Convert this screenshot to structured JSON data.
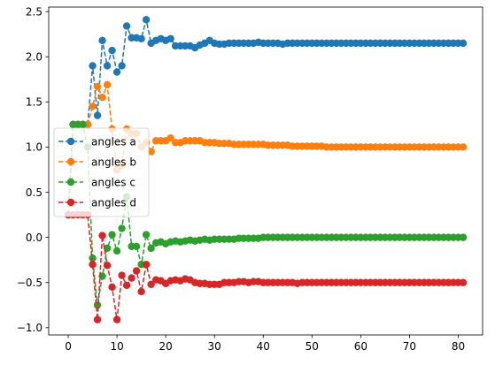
{
  "chart_data": {
    "type": "line",
    "title": "",
    "xlabel": "",
    "ylabel": "",
    "xlim": [
      -4,
      85
    ],
    "ylim": [
      -1.08,
      2.55
    ],
    "xticks": [
      0,
      10,
      20,
      30,
      40,
      50,
      60,
      70,
      80
    ],
    "yticks": [
      -1.0,
      -0.5,
      0.0,
      0.5,
      1.0,
      1.5,
      2.0,
      2.5
    ],
    "xtick_labels": [
      "0",
      "10",
      "20",
      "30",
      "40",
      "50",
      "60",
      "70",
      "80"
    ],
    "ytick_labels": [
      "−1.0",
      "−0.5",
      "0.0",
      "0.5",
      "1.0",
      "1.5",
      "2.0",
      "2.5"
    ],
    "grid": false,
    "legend_position": "center-left",
    "line_style": "dashed",
    "marker": "circle",
    "series": [
      {
        "name": "angles a",
        "color": "#1f77b4",
        "values": [
          0.25,
          1.25,
          1.25,
          1.25,
          1.25,
          1.9,
          1.35,
          2.18,
          1.9,
          2.07,
          1.83,
          1.9,
          2.34,
          2.21,
          2.21,
          2.2,
          2.41,
          2.15,
          2.18,
          2.2,
          2.18,
          2.2,
          2.12,
          2.12,
          2.12,
          2.12,
          2.1,
          2.13,
          2.15,
          2.18,
          2.15,
          2.14,
          2.14,
          2.15,
          2.15,
          2.15,
          2.15,
          2.15,
          2.15,
          2.16,
          2.15,
          2.15,
          2.15,
          2.15,
          2.14,
          2.15,
          2.15,
          2.15,
          2.15,
          2.15,
          2.15,
          2.15,
          2.15,
          2.15,
          2.15,
          2.15,
          2.15,
          2.15,
          2.15,
          2.15,
          2.15,
          2.15,
          2.15,
          2.15,
          2.15,
          2.15,
          2.15,
          2.15,
          2.15,
          2.15,
          2.15,
          2.15,
          2.15,
          2.15,
          2.15,
          2.15,
          2.15,
          2.15,
          2.15,
          2.15,
          2.15,
          2.15
        ]
      },
      {
        "name": "angles b",
        "color": "#ff7f0e",
        "values": [
          0.25,
          1.25,
          1.25,
          1.25,
          1.25,
          1.45,
          1.67,
          1.55,
          1.69,
          1.2,
          0.75,
          0.8,
          1.2,
          1.15,
          1.15,
          1.0,
          1.05,
          0.95,
          1.07,
          1.07,
          1.07,
          1.1,
          1.05,
          1.05,
          1.07,
          1.07,
          1.07,
          1.07,
          1.05,
          1.05,
          1.05,
          1.04,
          1.04,
          1.04,
          1.03,
          1.03,
          1.03,
          1.03,
          1.03,
          1.03,
          1.03,
          1.02,
          1.02,
          1.02,
          1.02,
          1.02,
          1.01,
          1.01,
          1.01,
          1.01,
          1.01,
          1.01,
          1.01,
          1.0,
          1.0,
          1.0,
          1.0,
          1.0,
          1.0,
          1.0,
          1.0,
          1.0,
          1.0,
          1.0,
          1.0,
          1.0,
          1.0,
          1.0,
          1.0,
          1.0,
          1.0,
          1.0,
          1.0,
          1.0,
          1.0,
          1.0,
          1.0,
          1.0,
          1.0,
          1.0,
          1.0,
          1.0
        ]
      },
      {
        "name": "angles c",
        "color": "#2ca02c",
        "values": [
          0.25,
          1.25,
          1.25,
          1.25,
          1.0,
          -0.23,
          -0.75,
          -0.43,
          -0.12,
          0.03,
          -0.15,
          0.1,
          0.45,
          -0.1,
          -0.1,
          -0.3,
          0.03,
          -0.12,
          -0.06,
          -0.05,
          -0.07,
          -0.05,
          -0.04,
          -0.05,
          -0.04,
          -0.03,
          -0.04,
          -0.03,
          -0.02,
          -0.03,
          -0.02,
          -0.02,
          -0.02,
          -0.02,
          -0.02,
          -0.01,
          -0.01,
          -0.01,
          -0.01,
          -0.01,
          0.0,
          0.0,
          0.0,
          0.0,
          0.0,
          0.0,
          0.0,
          0.0,
          0.0,
          0.0,
          0.0,
          0.0,
          0.0,
          0.0,
          0.0,
          0.0,
          0.0,
          0.0,
          0.0,
          0.0,
          0.0,
          0.0,
          0.0,
          0.0,
          0.0,
          0.0,
          0.0,
          0.0,
          0.0,
          0.0,
          0.0,
          0.0,
          0.0,
          0.0,
          0.0,
          0.0,
          0.0,
          0.0,
          0.0,
          0.0,
          0.0,
          0.0
        ]
      },
      {
        "name": "angles d",
        "color": "#d62728",
        "values": [
          0.25,
          0.25,
          0.25,
          0.25,
          0.25,
          -0.3,
          -0.91,
          0.02,
          -0.31,
          -0.55,
          -0.91,
          -0.42,
          -0.53,
          -0.45,
          -0.37,
          -0.6,
          -0.3,
          -0.52,
          -0.47,
          -0.48,
          -0.51,
          -0.48,
          -0.47,
          -0.48,
          -0.46,
          -0.47,
          -0.5,
          -0.51,
          -0.51,
          -0.52,
          -0.52,
          -0.52,
          -0.5,
          -0.5,
          -0.5,
          -0.49,
          -0.49,
          -0.5,
          -0.49,
          -0.49,
          -0.5,
          -0.5,
          -0.5,
          -0.5,
          -0.5,
          -0.5,
          -0.5,
          -0.51,
          -0.5,
          -0.5,
          -0.5,
          -0.5,
          -0.5,
          -0.5,
          -0.5,
          -0.5,
          -0.5,
          -0.5,
          -0.5,
          -0.5,
          -0.5,
          -0.5,
          -0.5,
          -0.5,
          -0.5,
          -0.5,
          -0.5,
          -0.5,
          -0.5,
          -0.5,
          -0.5,
          -0.5,
          -0.5,
          -0.5,
          -0.5,
          -0.5,
          -0.5,
          -0.5,
          -0.5,
          -0.5,
          -0.5,
          -0.5
        ]
      }
    ]
  }
}
